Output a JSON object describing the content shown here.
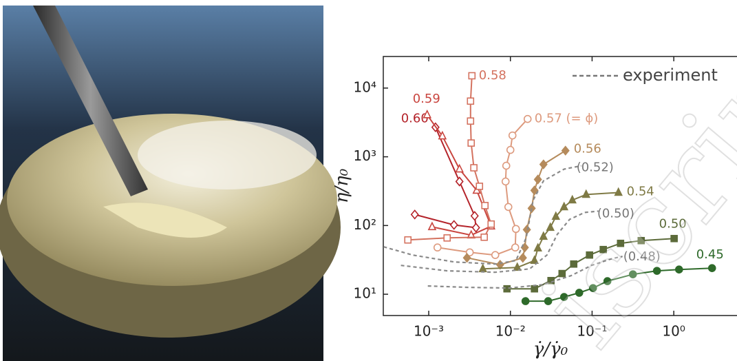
{
  "chart_data": {
    "type": "line",
    "xlabel": "γ̇/γ̇₀",
    "ylabel": "η/η₀",
    "xscale": "log",
    "yscale": "log",
    "xlim": [
      0.000278,
      5.94
    ],
    "ylim": [
      4.9,
      28800
    ],
    "xticks": [
      {
        "value": 0.001,
        "label": "10⁻³"
      },
      {
        "value": 0.01,
        "label": "10⁻²"
      },
      {
        "value": 0.1,
        "label": "10⁻¹"
      },
      {
        "value": 1,
        "label": "10⁰"
      }
    ],
    "yticks": [
      {
        "value": 10,
        "label": "10¹"
      },
      {
        "value": 100,
        "label": "10²"
      },
      {
        "value": 1000,
        "label": "10³"
      },
      {
        "value": 10000,
        "label": "10⁴"
      }
    ],
    "legend_label": "experiment",
    "watermark": "iscrip",
    "series": [
      {
        "name": "0.60",
        "color": "#b4232a",
        "marker": "diamond",
        "filled": false,
        "dashed": false,
        "x": [
          0.000675,
          0.00204,
          0.00379,
          0.00365,
          0.00238,
          0.00121
        ],
        "values": [
          144.5,
          102,
          93,
          138,
          437,
          2690
        ]
      },
      {
        "name": "0.59",
        "color": "#c9453f",
        "marker": "triangle",
        "filled": false,
        "dashed": false,
        "x": [
          0.0011,
          0.00331,
          0.00581,
          0.00387,
          0.00238,
          0.00147,
          0.000957
        ],
        "values": [
          95.5,
          72.4,
          97.7,
          324,
          661,
          2000,
          4070
        ]
      },
      {
        "name": "0.58",
        "color": "#d4725f",
        "marker": "square",
        "filled": false,
        "dashed": false,
        "x": [
          0.000556,
          0.00168,
          0.00478,
          0.00581,
          0.00488,
          0.00418,
          0.00357,
          0.00331,
          0.00325,
          0.00325,
          0.00338
        ],
        "values": [
          61.7,
          66,
          67.6,
          105,
          195,
          372,
          692,
          1585,
          3310,
          6460,
          15100
        ]
      },
      {
        "name": "0.57 (= ϕ)",
        "color": "#dd9a7e",
        "marker": "circle",
        "filled": false,
        "dashed": false,
        "x": [
          0.00128,
          0.00318,
          0.00653,
          0.01146,
          0.01168,
          0.00944,
          0.00873,
          0.0089,
          0.01,
          0.0106,
          0.01624
        ],
        "values": [
          47.9,
          40.7,
          37.2,
          47.9,
          89.1,
          186,
          437,
          741,
          1259,
          2042,
          3550
        ]
      },
      {
        "name": "0.56",
        "color": "#b58b5c",
        "marker": "diamond",
        "filled": true,
        "dashed": false,
        "x": [
          0.00294,
          0.00748,
          0.0142,
          0.015,
          0.0159,
          0.0182,
          0.0197,
          0.0217,
          0.0254,
          0.0472
        ],
        "values": [
          33.9,
          26.9,
          33.9,
          47.9,
          87.1,
          178,
          324,
          468,
          776,
          1230
        ]
      },
      {
        "name": "0.54",
        "color": "#7f7a45",
        "marker": "triangle",
        "filled": true,
        "dashed": false,
        "x": [
          0.0046,
          0.01214,
          0.0197,
          0.0217,
          0.0254,
          0.0308,
          0.036,
          0.0454,
          0.0573,
          0.0845,
          0.21
        ],
        "values": [
          23.4,
          24.5,
          30.9,
          46.8,
          69.2,
          93.3,
          135,
          186,
          234,
          282,
          302
        ]
      },
      {
        "name": "0.50",
        "color": "#5c6b3a",
        "marker": "square",
        "filled": true,
        "dashed": false,
        "x": [
          0.00908,
          0.0197,
          0.0314,
          0.0429,
          0.0596,
          0.093,
          0.137,
          0.223,
          0.399,
          1.01
        ],
        "values": [
          12.0,
          12.0,
          15.8,
          20,
          27.5,
          37.2,
          44.7,
          55,
          60.3,
          64.6
        ]
      },
      {
        "name": "0.45",
        "color": "#2e6a2a",
        "marker": "circle",
        "filled": true,
        "dashed": false,
        "x": [
          0.0153,
          0.029,
          0.0454,
          0.0696,
          0.1026,
          0.154,
          0.316,
          0.622,
          1.16,
          2.94
        ],
        "values": [
          7.94,
          7.94,
          9.12,
          10.5,
          12.3,
          15.5,
          19.5,
          21.9,
          22.9,
          24
        ]
      },
      {
        "name": "(0.52)",
        "color": "#8a8a8a",
        "marker": "none",
        "filled": false,
        "dashed": true,
        "x": [
          0.00028,
          0.000637,
          0.00204,
          0.00653,
          0.01168,
          0.0156,
          0.019,
          0.0254,
          0.0454,
          0.0737
        ],
        "values": [
          49,
          37.2,
          29.5,
          27.5,
          30.9,
          66,
          234,
          447,
          661,
          741
        ]
      },
      {
        "name": "(0.50)",
        "color": "#8a8a8a",
        "marker": "none",
        "filled": false,
        "dashed": true,
        "x": [
          0.000457,
          0.00168,
          0.00653,
          0.0172,
          0.028,
          0.0374,
          0.0531,
          0.0813,
          0.12
        ],
        "values": [
          26.3,
          21.9,
          20.9,
          23.4,
          37.2,
          74.1,
          123,
          155,
          162
        ]
      },
      {
        "name": "(0.48)",
        "color": "#8a8a8a",
        "marker": "none",
        "filled": false,
        "dashed": true,
        "x": [
          0.000975,
          0.003,
          0.0096,
          0.0254,
          0.0551,
          0.0986,
          0.177,
          0.236
        ],
        "values": [
          13.2,
          12.6,
          12.3,
          13.8,
          18.6,
          26.3,
          33.1,
          35.5
        ]
      }
    ]
  }
}
